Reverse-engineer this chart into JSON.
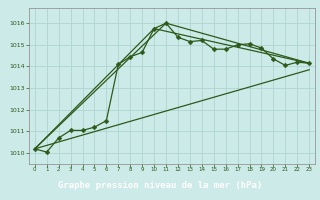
{
  "title": "Graphe pression niveau de la mer (hPa)",
  "background_color": "#cceae7",
  "label_bg_color": "#3a7d44",
  "line_color": "#2d5a1b",
  "grid_color": "#b0d4d0",
  "xlim": [
    -0.5,
    23.5
  ],
  "ylim": [
    1009.5,
    1016.7
  ],
  "yticks": [
    1010,
    1011,
    1012,
    1013,
    1014,
    1015,
    1016
  ],
  "xticks": [
    0,
    1,
    2,
    3,
    4,
    5,
    6,
    7,
    8,
    9,
    10,
    11,
    12,
    13,
    14,
    15,
    16,
    17,
    18,
    19,
    20,
    21,
    22,
    23
  ],
  "main_x": [
    0,
    1,
    2,
    3,
    4,
    5,
    6,
    7,
    8,
    9,
    10,
    11,
    12,
    13,
    14,
    15,
    16,
    17,
    18,
    19,
    20,
    21,
    22,
    23
  ],
  "main_y": [
    1010.2,
    1010.05,
    1010.7,
    1011.05,
    1011.05,
    1011.2,
    1011.5,
    1014.1,
    1014.45,
    1014.65,
    1015.75,
    1016.0,
    1015.35,
    1015.15,
    1015.2,
    1014.8,
    1014.8,
    1015.0,
    1015.05,
    1014.85,
    1014.35,
    1014.05,
    1014.2,
    1014.15
  ],
  "line2_x": [
    0,
    23
  ],
  "line2_y": [
    1010.2,
    1013.85
  ],
  "line3_x": [
    0,
    10,
    23
  ],
  "line3_y": [
    1010.2,
    1015.75,
    1014.15
  ],
  "line4_x": [
    0,
    11,
    23
  ],
  "line4_y": [
    1010.2,
    1016.0,
    1014.15
  ]
}
